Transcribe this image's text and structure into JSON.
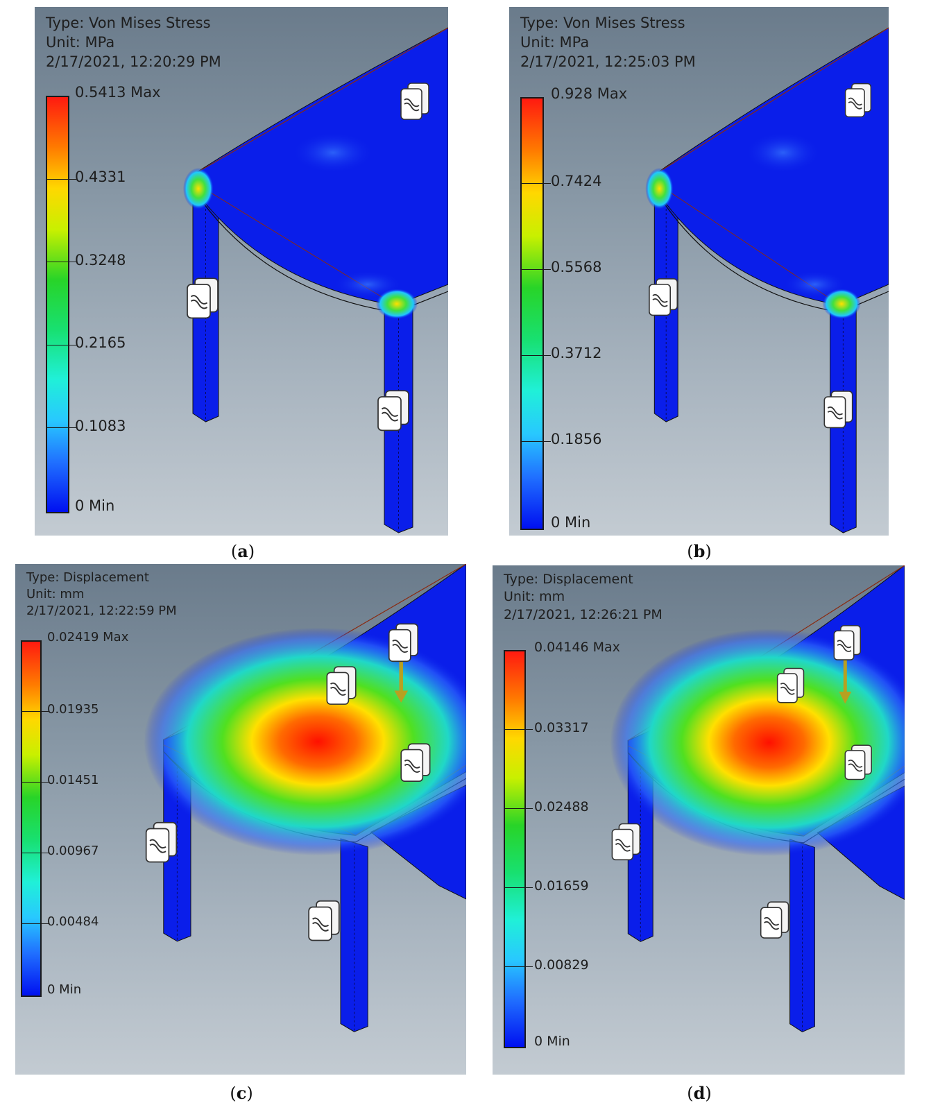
{
  "panels": [
    {
      "caption_letter": "a",
      "type_line": "Type: Von Mises Stress",
      "unit_line": "Unit: MPa",
      "date_line": "2/17/2021, 12:20:29 PM",
      "legend": [
        "0.5413 Max",
        "0.4331",
        "0.3248",
        "0.2165",
        "0.1083",
        "0 Min"
      ],
      "result": "stress"
    },
    {
      "caption_letter": "b",
      "type_line": "Type: Von Mises Stress",
      "unit_line": "Unit: MPa",
      "date_line": "2/17/2021, 12:25:03 PM",
      "legend": [
        "0.928 Max",
        "0.7424",
        "0.5568",
        "0.3712",
        "0.1856",
        "0 Min"
      ],
      "result": "stress"
    },
    {
      "caption_letter": "c",
      "type_line": "Type: Displacement",
      "unit_line": "Unit: mm",
      "date_line": "2/17/2021, 12:22:59 PM",
      "legend": [
        "0.02419 Max",
        "0.01935",
        "0.01451",
        "0.00967",
        "0.00484",
        "0 Min"
      ],
      "result": "displacement"
    },
    {
      "caption_letter": "d",
      "type_line": "Type: Displacement",
      "unit_line": "Unit: mm",
      "date_line": "2/17/2021, 12:26:21 PM",
      "legend": [
        "0.04146 Max",
        "0.03317",
        "0.02488",
        "0.01659",
        "0.00829",
        "0 Min"
      ],
      "result": "displacement"
    }
  ],
  "colors": {
    "mesh_blue": "#0a1eea",
    "hot_red": "#ff1a00",
    "load_arrow": "#b8a020",
    "deformed_outline": "#8a2a10"
  },
  "icons": [
    "fixed-constraint-icon",
    "load-arrow-icon"
  ]
}
